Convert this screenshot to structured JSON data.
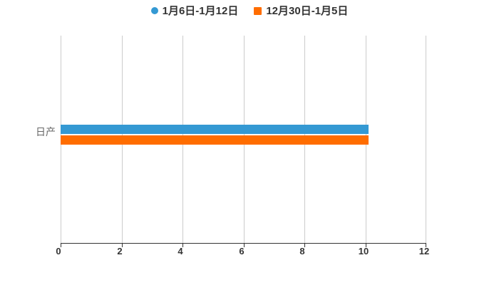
{
  "legend": {
    "items": [
      {
        "label": "1月6日-1月12日",
        "marker": "circle",
        "color": "#3499d3"
      },
      {
        "label": "12月30日-1月5日",
        "marker": "square",
        "color": "#ff6d00"
      }
    ]
  },
  "chart_data": {
    "type": "bar",
    "orientation": "horizontal",
    "title": "",
    "categories": [
      "日产"
    ],
    "series": [
      {
        "name": "1月6日-1月12日",
        "color": "#3499d3",
        "values": [
          10.1
        ]
      },
      {
        "name": "12月30日-1月5日",
        "color": "#ff6d00",
        "values": [
          10.1
        ]
      }
    ],
    "xlim": [
      0,
      12
    ],
    "xticks": [
      0,
      2,
      4,
      6,
      8,
      10,
      12
    ],
    "xlabel": "",
    "ylabel": "",
    "grid": true,
    "legend_position": "top"
  },
  "colors": {
    "background": "#ffffff",
    "gridline": "#cccccc",
    "axis_line": "#333333",
    "tick_label": "#333333",
    "category_label": "#666666",
    "legend_text": "#333333"
  }
}
